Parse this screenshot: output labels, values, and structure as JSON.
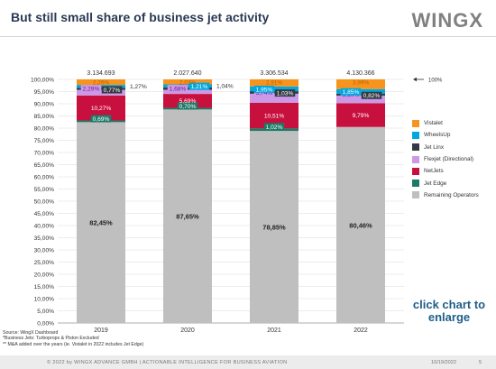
{
  "page": {
    "title": "But still small share of business jet activity",
    "brand": "WINGX",
    "enlarge_text": "click chart to enlarge",
    "footnotes": [
      "Source: WingX Dashboard",
      "*Business Jets: Turboprops & Piston Excluded",
      "** M&A added over the years (ie. Vistalet in 2022 includes Jet Edge)"
    ],
    "footer_text": "© 2022  by WINGX ADVANCE GMBH  |  ACTIONABLE INTELLIGENCE FOR BUSINESS AVIATION",
    "footer_date": "10/19/2022",
    "footer_page": "5"
  },
  "chart_data": {
    "type": "bar",
    "stacked": true,
    "categories": [
      "2019",
      "2020",
      "2021",
      "2022"
    ],
    "totals": [
      "3.134.693",
      "2.027.640",
      "3.306.534",
      "4.130.366"
    ],
    "ylim": [
      0,
      100
    ],
    "ytick_step": 5,
    "y_ticks": [
      "0,00%",
      "5,00%",
      "10,00%",
      "15,00%",
      "20,00%",
      "25,00%",
      "30,00%",
      "35,00%",
      "40,00%",
      "45,00%",
      "50,00%",
      "55,00%",
      "60,00%",
      "65,00%",
      "70,00%",
      "75,00%",
      "80,00%",
      "85,00%",
      "90,00%",
      "95,00%",
      "100,00%"
    ],
    "reference_line": {
      "value": 100,
      "label": "100%"
    },
    "legend_position": "right",
    "grid": true,
    "series": [
      {
        "name": "Remaining Operators",
        "color": "#bfbfbf",
        "values": [
          82.45,
          87.65,
          78.85,
          80.46
        ],
        "labels": [
          "82,45%",
          "87,65%",
          "78,85%",
          "80,46%"
        ]
      },
      {
        "name": "Jet Edge",
        "color": "#1c7a66",
        "values": [
          0.69,
          0.7,
          1.02,
          0
        ],
        "labels": [
          "0,69%",
          "0,70%",
          "1,02%",
          ""
        ]
      },
      {
        "name": "NetJets",
        "color": "#c8103e",
        "values": [
          10.27,
          5.69,
          10.51,
          9.79
        ],
        "labels": [
          "10,27%",
          "5,69%",
          "10,51%",
          "9,79%"
        ]
      },
      {
        "name": "Flexjet (Directional)",
        "color": "#cc99e6",
        "values": [
          2.29,
          1.68,
          3.74,
          3.1
        ],
        "labels": [
          "2,29%",
          "1,68%",
          "3,74%",
          "3,10%"
        ]
      },
      {
        "name": "Jet Linx",
        "color": "#333a44",
        "values": [
          0.77,
          1.04,
          1.03,
          0.82
        ],
        "labels": [
          "0,77%",
          "1,04%",
          "1,03%",
          "0,82%"
        ]
      },
      {
        "name": "WheelsUp",
        "color": "#00a8e0",
        "values": [
          1.27,
          1.21,
          1.95,
          1.85
        ],
        "labels": [
          "1,27%",
          "1,21%",
          "1,95%",
          "1,85%"
        ]
      },
      {
        "name": "Vistalet",
        "color": "#f7941d",
        "values": [
          2.26,
          2.03,
          2.91,
          3.99
        ],
        "labels": [
          "2,26%",
          "2,03%",
          "2,91%",
          "3,99%"
        ]
      }
    ],
    "legend_order": [
      "Vistalet",
      "WheelsUp",
      "Jet Linx",
      "Flexjet (Directional)",
      "NetJets",
      "Jet Edge",
      "Remaining Operators"
    ]
  }
}
